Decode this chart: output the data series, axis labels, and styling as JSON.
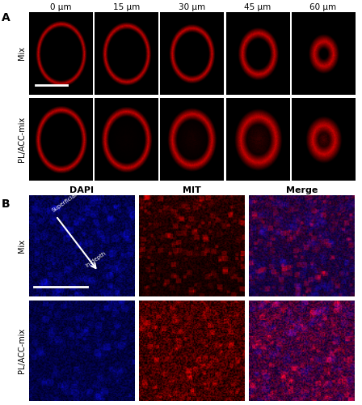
{
  "panel_A_label": "A",
  "panel_B_label": "B",
  "col_labels_A": [
    "0 μm",
    "15 μm",
    "30 μm",
    "45 μm",
    "60 μm"
  ],
  "row_labels_A": [
    "Mix",
    "PL/ACC-mix"
  ],
  "col_labels_B": [
    "DAPI",
    "MIT",
    "Merge"
  ],
  "row_labels_B": [
    "Mix",
    "PL/ACC-mix"
  ],
  "arrow_annotation": [
    "Superficial",
    "In-depth"
  ],
  "scale_bar_color": "#ffffff",
  "background_color": "#000000",
  "label_color": "#000000",
  "outer_bg": "#ffffff",
  "figure_bg": "#ffffff"
}
